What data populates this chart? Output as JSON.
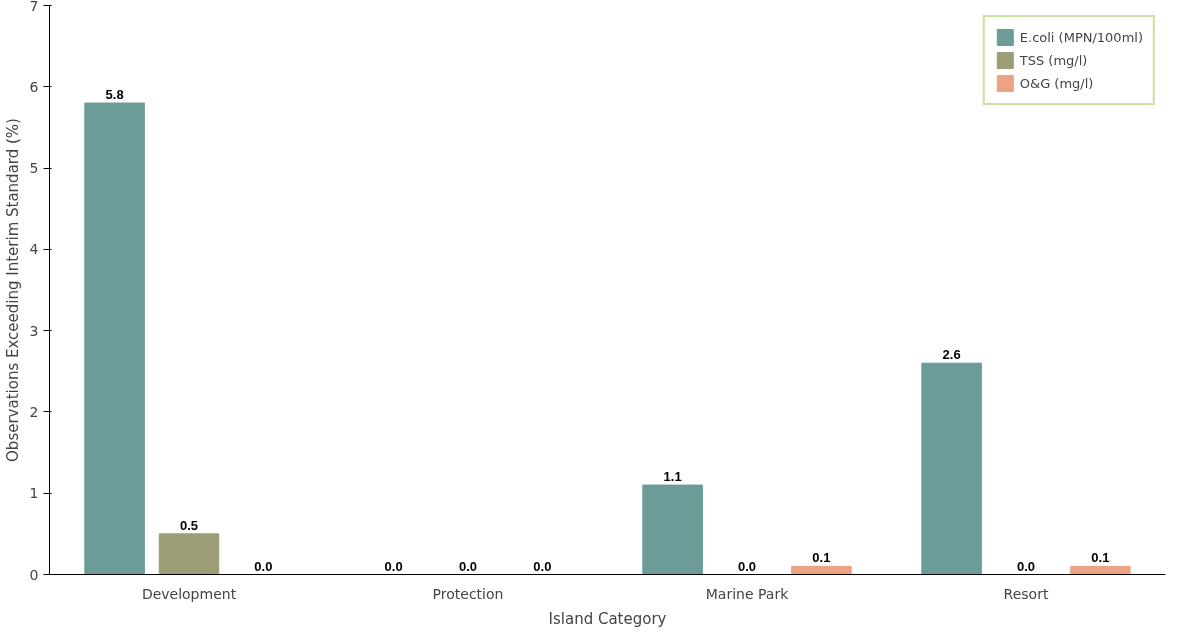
{
  "chart_data": {
    "type": "bar",
    "xlabel": "Island Category",
    "ylabel": "Observations Exceeding Interim Standard (%)",
    "categories": [
      "Development",
      "Protection",
      "Marine Park",
      "Resort"
    ],
    "series": [
      {
        "name": "E.coli (MPN/100ml)",
        "color": "#6b9c98",
        "values": [
          5.8,
          0,
          1.1,
          2.6
        ],
        "value_labels": [
          "5.8",
          "0.0",
          "1.1",
          "2.6"
        ]
      },
      {
        "name": "TSS (mg/l)",
        "color": "#9c9c76",
        "values": [
          0.5,
          0,
          0,
          0
        ],
        "value_labels": [
          "0.5",
          "0.0",
          "0.0",
          "0.0"
        ]
      },
      {
        "name": "O&G (mg/l)",
        "color": "#eba383",
        "values": [
          0,
          0,
          0.1,
          0.1
        ],
        "value_labels": [
          "0.0",
          "0.0",
          "0.1",
          "0.1"
        ]
      }
    ],
    "ylim": [
      0,
      7
    ],
    "yticks": [
      0,
      1,
      2,
      3,
      4,
      5,
      6,
      7
    ],
    "legend": "top right",
    "grid": false
  }
}
